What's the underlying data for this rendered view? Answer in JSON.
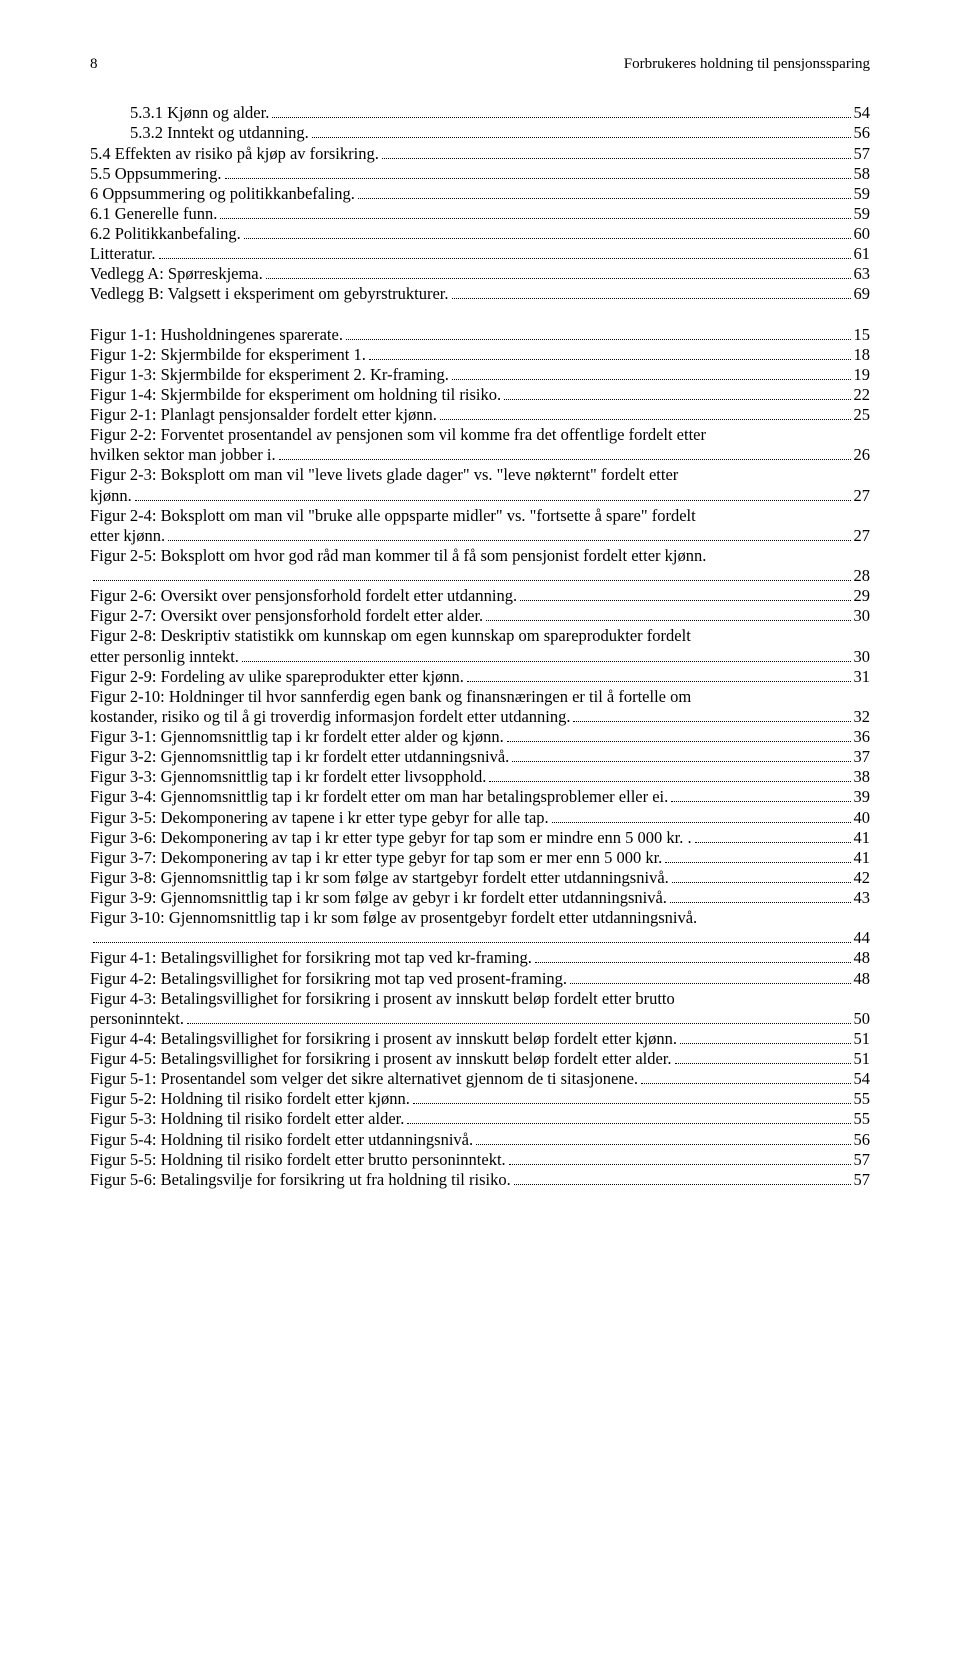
{
  "header": {
    "page_number": "8",
    "title": "Forbrukeres holdning til pensjonssparing"
  },
  "toc": [
    {
      "indent": 1,
      "label": "5.3.1   Kjønn og alder.",
      "page": "54"
    },
    {
      "indent": 1,
      "label": "5.3.2   Inntekt og utdanning.",
      "page": "56"
    },
    {
      "indent": 0,
      "label": "5.4    Effekten av risiko på kjøp av forsikring.",
      "page": "57"
    },
    {
      "indent": 0,
      "label": "5.5    Oppsummering.",
      "page": "58"
    },
    {
      "indent": 0,
      "label": "6    Oppsummering og politikkanbefaling.",
      "page": "59"
    },
    {
      "indent": 0,
      "label": "6.1    Generelle funn.",
      "page": "59"
    },
    {
      "indent": 0,
      "label": "6.2    Politikkanbefaling.",
      "page": "60"
    },
    {
      "indent": 0,
      "label": "Litteratur.",
      "page": "61"
    },
    {
      "indent": 0,
      "label": "Vedlegg A: Spørreskjema.",
      "page": "63"
    },
    {
      "indent": 0,
      "label": "Vedlegg B: Valgsett i eksperiment om gebyrstrukturer.",
      "page": "69"
    }
  ],
  "figures": [
    {
      "label": "Figur 1-1: Husholdningenes sparerate.",
      "page": "15"
    },
    {
      "label": "Figur 1-2: Skjermbilde for eksperiment 1.",
      "page": "18"
    },
    {
      "label": "Figur 1-3: Skjermbilde for eksperiment 2. Kr-framing.",
      "page": "19"
    },
    {
      "label": "Figur 1-4: Skjermbilde for eksperiment om holdning til risiko.",
      "page": "22"
    },
    {
      "label": "Figur 2-1: Planlagt pensjonsalder fordelt etter kjønn.",
      "page": "25"
    },
    {
      "wrap": [
        "Figur 2-2: Forventet prosentandel av pensjonen som vil komme fra det offentlige fordelt etter"
      ],
      "last": "hvilken sektor man jobber i.",
      "page": "26"
    },
    {
      "wrap": [
        "Figur 2-3: Boksplott om man vil \"leve livets glade dager\" vs. \"leve nøkternt\" fordelt etter"
      ],
      "last": "kjønn.",
      "page": "27"
    },
    {
      "wrap": [
        "Figur 2-4: Boksplott om man vil \"bruke alle oppsparte midler\" vs. \"fortsette å spare\" fordelt"
      ],
      "last": "etter kjønn.",
      "page": "27"
    },
    {
      "wrap": [
        "Figur 2-5: Boksplott om hvor god råd man kommer til å få som pensjonist fordelt etter kjønn."
      ],
      "last": "",
      "page": "28"
    },
    {
      "label": "Figur 2-6: Oversikt over pensjonsforhold fordelt etter utdanning.",
      "page": "29"
    },
    {
      "label": "Figur 2-7: Oversikt over pensjonsforhold fordelt etter alder.",
      "page": "30"
    },
    {
      "wrap": [
        "Figur 2-8: Deskriptiv statistikk om kunnskap om egen kunnskap om spareprodukter fordelt"
      ],
      "last": "etter personlig inntekt.",
      "page": "30"
    },
    {
      "label": "Figur 2-9: Fordeling av ulike spareprodukter etter kjønn.",
      "page": "31"
    },
    {
      "wrap": [
        "Figur 2-10: Holdninger til hvor sannferdig egen bank og finansnæringen er til å fortelle om"
      ],
      "last": "kostander, risiko og til å gi troverdig informasjon fordelt etter utdanning.",
      "page": "32"
    },
    {
      "label": "Figur 3-1: Gjennomsnittlig tap i kr fordelt etter alder og kjønn.",
      "page": "36"
    },
    {
      "label": "Figur 3-2: Gjennomsnittlig tap i kr fordelt etter utdanningsnivå.",
      "page": "37"
    },
    {
      "label": "Figur 3-3: Gjennomsnittlig tap i kr fordelt etter livsopphold.",
      "page": "38"
    },
    {
      "label": "Figur 3-4: Gjennomsnittlig tap i kr fordelt etter om man har betalingsproblemer eller ei.",
      "page": "39"
    },
    {
      "label": "Figur 3-5: Dekomponering av tapene i kr etter type gebyr for alle tap.",
      "page": "40"
    },
    {
      "label": "Figur 3-6: Dekomponering av tap i kr etter type gebyr for tap som er mindre enn 5 000 kr. .",
      "page": "41"
    },
    {
      "label": "Figur 3-7: Dekomponering av tap i kr etter type gebyr for tap som er mer enn 5 000 kr.",
      "page": "41"
    },
    {
      "label": "Figur 3-8: Gjennomsnittlig tap i kr som følge av startgebyr fordelt etter utdanningsnivå.",
      "page": "42"
    },
    {
      "label": "Figur 3-9: Gjennomsnittlig tap i kr som følge av gebyr i kr fordelt etter utdanningsnivå.",
      "page": "43"
    },
    {
      "wrap": [
        "Figur 3-10: Gjennomsnittlig tap i kr som følge av prosentgebyr fordelt etter utdanningsnivå."
      ],
      "last": "",
      "page": "44"
    },
    {
      "label": "Figur 4-1: Betalingsvillighet for forsikring mot tap ved kr-framing.",
      "page": "48"
    },
    {
      "label": "Figur 4-2: Betalingsvillighet for forsikring mot tap ved prosent-framing.",
      "page": "48"
    },
    {
      "wrap": [
        "Figur 4-3: Betalingsvillighet for forsikring i prosent av innskutt beløp fordelt etter brutto"
      ],
      "last": "personinntekt.",
      "page": "50"
    },
    {
      "label": "Figur 4-4: Betalingsvillighet for forsikring i prosent av innskutt beløp fordelt etter kjønn.",
      "page": "51"
    },
    {
      "label": "Figur 4-5: Betalingsvillighet for forsikring i prosent av innskutt beløp fordelt etter alder.",
      "page": "51"
    },
    {
      "label": "Figur 5-1: Prosentandel som velger det sikre alternativet gjennom de ti sitasjonene.",
      "page": "54"
    },
    {
      "label": "Figur 5-2: Holdning til risiko fordelt etter kjønn.",
      "page": "55"
    },
    {
      "label": "Figur 5-3: Holdning til risiko fordelt etter alder.",
      "page": "55"
    },
    {
      "label": "Figur 5-4: Holdning til risiko fordelt etter utdanningsnivå.",
      "page": "56"
    },
    {
      "label": "Figur 5-5: Holdning til risiko fordelt etter brutto personinntekt.",
      "page": "57"
    },
    {
      "label": "Figur 5-6: Betalingsvilje for forsikring ut fra holdning til risiko.",
      "page": "57"
    }
  ]
}
